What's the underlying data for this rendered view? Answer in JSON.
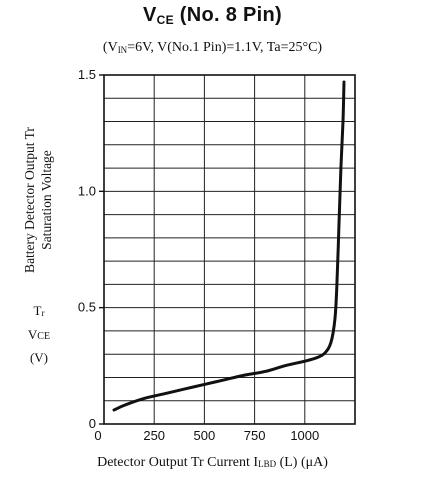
{
  "chart_data": {
    "type": "line",
    "title": {
      "main": "V",
      "main_sub": "CE",
      "main_rest": " (No. 8 Pin)"
    },
    "subtitle": {
      "open": "(V",
      "sub": "IN",
      "rest": "=6V,  V(No.1 Pin)=1.1V,  Ta=25°C)"
    },
    "ylabel": {
      "line1": "Battery Detector Output Tr",
      "line2": "Saturation Voltage",
      "sym1_main": "T",
      "sym1_sub": "r",
      "sym2_main": "V",
      "sym2_sub": "CE",
      "unit": "(V)"
    },
    "xlabel": {
      "main": "Detector Output Tr Current I",
      "sub": "LBD",
      "rest": " (L)  (μA)"
    },
    "xlim": [
      0,
      1250
    ],
    "ylim": [
      0,
      1.5
    ],
    "x_ticks": [
      0,
      250,
      500,
      750,
      1000
    ],
    "x_tick_labels": [
      "0",
      "250",
      "500",
      "750",
      "1000"
    ],
    "y_ticks": [
      0,
      0.5,
      1.0,
      1.5
    ],
    "y_tick_labels": [
      "0",
      "0.5",
      "1.0",
      "1.5"
    ],
    "grid": "horizontal lines every 0.1 V; vertical lines every 250 μA",
    "series": [
      {
        "color": "#111111",
        "points": [
          [
            50,
            0.06
          ],
          [
            100,
            0.08
          ],
          [
            200,
            0.11
          ],
          [
            300,
            0.13
          ],
          [
            400,
            0.15
          ],
          [
            500,
            0.17
          ],
          [
            600,
            0.19
          ],
          [
            700,
            0.21
          ],
          [
            800,
            0.225
          ],
          [
            900,
            0.25
          ],
          [
            1000,
            0.27
          ],
          [
            1060,
            0.285
          ],
          [
            1100,
            0.305
          ],
          [
            1130,
            0.35
          ],
          [
            1150,
            0.45
          ],
          [
            1160,
            0.6
          ],
          [
            1170,
            0.85
          ],
          [
            1180,
            1.1
          ],
          [
            1190,
            1.3
          ],
          [
            1195,
            1.47
          ]
        ]
      }
    ]
  }
}
